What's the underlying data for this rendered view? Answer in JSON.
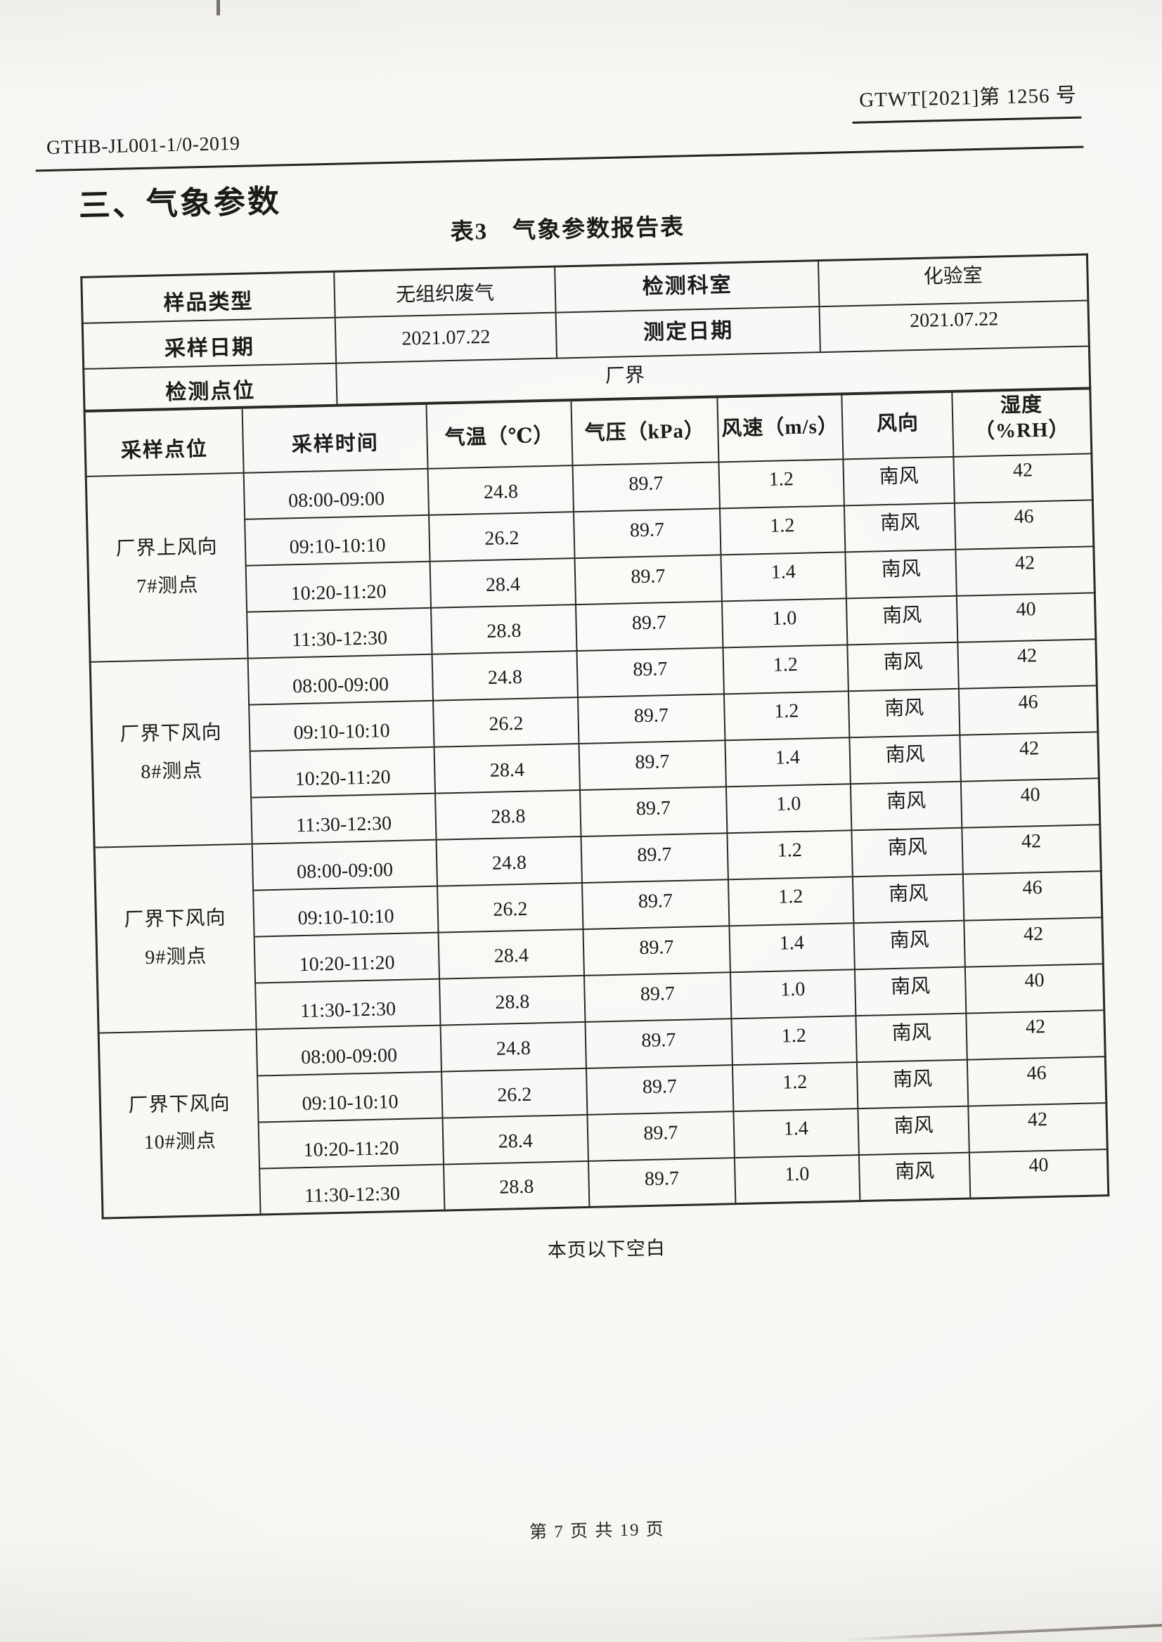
{
  "paper_color": "#f7f6f3",
  "ink_color": "#1c1b19",
  "header": {
    "doc_no_left": "GTHB-JL001-1/0-2019",
    "doc_no_right": "GTWT[2021]第 1256 号",
    "section_title": "三、气象参数",
    "table_title": "表3　气象参数报告表"
  },
  "info": {
    "rows": [
      {
        "label1": "样品类型",
        "value1": "无组织废气",
        "label2": "检测科室",
        "value2": "化验室"
      },
      {
        "label1": "采样日期",
        "value1": "2021.07.22",
        "label2": "测定日期",
        "value2": "2021.07.22"
      }
    ],
    "site": {
      "label": "检测点位",
      "value": "厂界"
    }
  },
  "columns": {
    "site": "采样点位",
    "time": "采样时间",
    "temp": "气温（℃）",
    "pressure": "气压（kPa）",
    "wind_speed": "风速（m/s）",
    "wind_dir": "风向",
    "humidity_line1": "湿度",
    "humidity_line2": "（%RH）"
  },
  "groups": [
    {
      "location_line1": "厂界上风向",
      "location_line2": "7#测点",
      "rows": [
        {
          "time": "08:00-09:00",
          "temp": "24.8",
          "pressure": "89.7",
          "wind_speed": "1.2",
          "wind_dir": "南风",
          "humidity": "42"
        },
        {
          "time": "09:10-10:10",
          "temp": "26.2",
          "pressure": "89.7",
          "wind_speed": "1.2",
          "wind_dir": "南风",
          "humidity": "46"
        },
        {
          "time": "10:20-11:20",
          "temp": "28.4",
          "pressure": "89.7",
          "wind_speed": "1.4",
          "wind_dir": "南风",
          "humidity": "42"
        },
        {
          "time": "11:30-12:30",
          "temp": "28.8",
          "pressure": "89.7",
          "wind_speed": "1.0",
          "wind_dir": "南风",
          "humidity": "40"
        }
      ]
    },
    {
      "location_line1": "厂界下风向",
      "location_line2": "8#测点",
      "rows": [
        {
          "time": "08:00-09:00",
          "temp": "24.8",
          "pressure": "89.7",
          "wind_speed": "1.2",
          "wind_dir": "南风",
          "humidity": "42"
        },
        {
          "time": "09:10-10:10",
          "temp": "26.2",
          "pressure": "89.7",
          "wind_speed": "1.2",
          "wind_dir": "南风",
          "humidity": "46"
        },
        {
          "time": "10:20-11:20",
          "temp": "28.4",
          "pressure": "89.7",
          "wind_speed": "1.4",
          "wind_dir": "南风",
          "humidity": "42"
        },
        {
          "time": "11:30-12:30",
          "temp": "28.8",
          "pressure": "89.7",
          "wind_speed": "1.0",
          "wind_dir": "南风",
          "humidity": "40"
        }
      ]
    },
    {
      "location_line1": "厂界下风向",
      "location_line2": "9#测点",
      "rows": [
        {
          "time": "08:00-09:00",
          "temp": "24.8",
          "pressure": "89.7",
          "wind_speed": "1.2",
          "wind_dir": "南风",
          "humidity": "42"
        },
        {
          "time": "09:10-10:10",
          "temp": "26.2",
          "pressure": "89.7",
          "wind_speed": "1.2",
          "wind_dir": "南风",
          "humidity": "46"
        },
        {
          "time": "10:20-11:20",
          "temp": "28.4",
          "pressure": "89.7",
          "wind_speed": "1.4",
          "wind_dir": "南风",
          "humidity": "42"
        },
        {
          "time": "11:30-12:30",
          "temp": "28.8",
          "pressure": "89.7",
          "wind_speed": "1.0",
          "wind_dir": "南风",
          "humidity": "40"
        }
      ]
    },
    {
      "location_line1": "厂界下风向",
      "location_line2": "10#测点",
      "rows": [
        {
          "time": "08:00-09:00",
          "temp": "24.8",
          "pressure": "89.7",
          "wind_speed": "1.2",
          "wind_dir": "南风",
          "humidity": "42"
        },
        {
          "time": "09:10-10:10",
          "temp": "26.2",
          "pressure": "89.7",
          "wind_speed": "1.2",
          "wind_dir": "南风",
          "humidity": "46"
        },
        {
          "time": "10:20-11:20",
          "temp": "28.4",
          "pressure": "89.7",
          "wind_speed": "1.4",
          "wind_dir": "南风",
          "humidity": "42"
        },
        {
          "time": "11:30-12:30",
          "temp": "28.8",
          "pressure": "89.7",
          "wind_speed": "1.0",
          "wind_dir": "南风",
          "humidity": "40"
        }
      ]
    }
  ],
  "note": "本页以下空白",
  "footer": "第 7 页 共 19 页"
}
